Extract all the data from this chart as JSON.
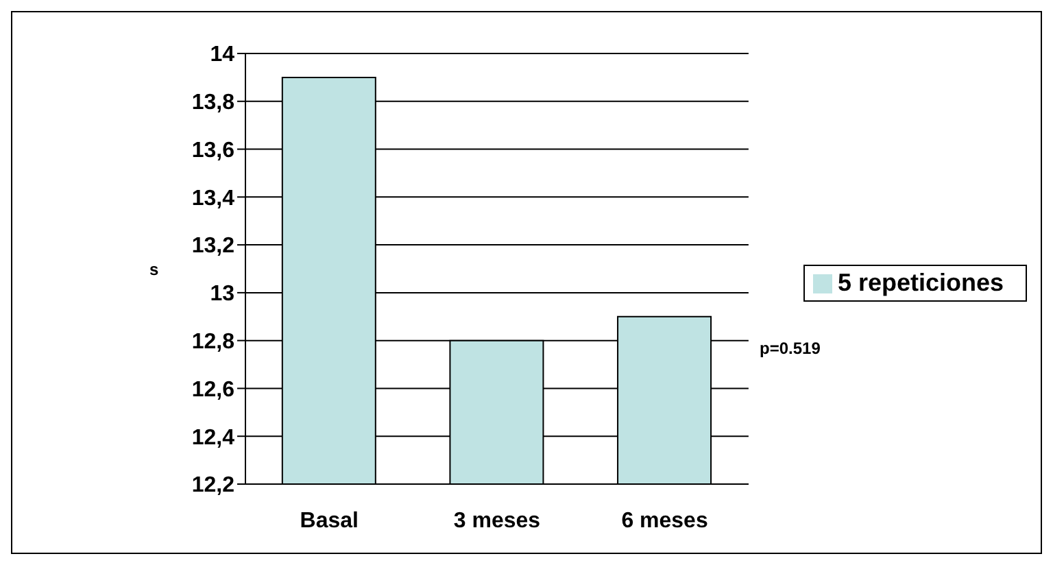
{
  "chart_data": {
    "type": "bar",
    "ylabel": "s",
    "categories": [
      "Basal",
      "3 meses",
      "6 meses"
    ],
    "series": [
      {
        "name": "5 repeticiones",
        "color": "#bfe3e3",
        "values": [
          13.9,
          12.8,
          12.9
        ]
      }
    ],
    "ylim": [
      12.2,
      14
    ],
    "yticks": [
      {
        "value": 12.2,
        "label": "12,2"
      },
      {
        "value": 12.4,
        "label": "12,4"
      },
      {
        "value": 12.6,
        "label": "12,6"
      },
      {
        "value": 12.8,
        "label": "12,8"
      },
      {
        "value": 13,
        "label": "13"
      },
      {
        "value": 13.2,
        "label": "13,2"
      },
      {
        "value": 13.4,
        "label": "13,4"
      },
      {
        "value": 13.6,
        "label": "13,6"
      },
      {
        "value": 13.8,
        "label": "13,8"
      },
      {
        "value": 14,
        "label": "14"
      }
    ],
    "grid": "y",
    "legend": "right",
    "annotations": [
      "p=0.519"
    ]
  }
}
